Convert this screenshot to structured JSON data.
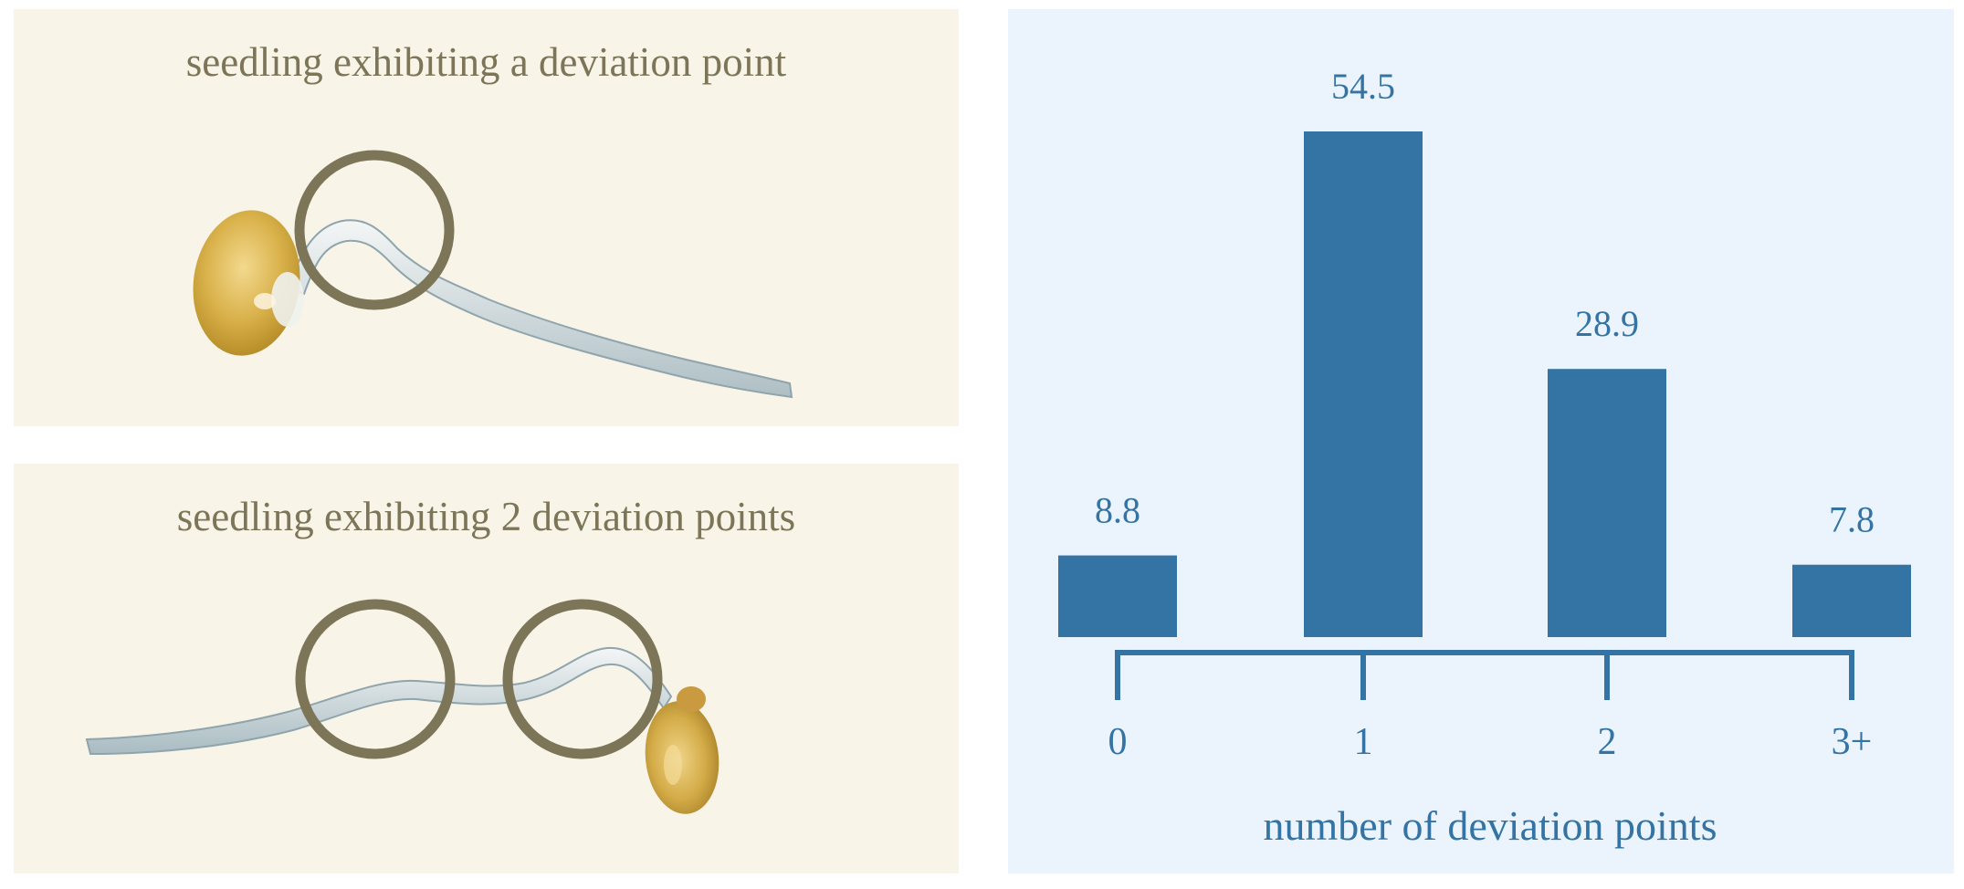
{
  "panels": {
    "top": {
      "caption": "seedling exhibiting a deviation point"
    },
    "bottom": {
      "caption": "seedling exhibiting 2 deviation points"
    }
  },
  "colors": {
    "panel_background": "#f8f4e8",
    "chart_background": "#ebf4fc",
    "bar": "#3474a4",
    "circle": "#7d7557"
  },
  "chart_data": {
    "type": "bar",
    "categories": [
      "0",
      "1",
      "2",
      "3+"
    ],
    "values": [
      8.8,
      54.5,
      28.9,
      7.8
    ],
    "data_labels": [
      "8.8",
      "54.5",
      "28.9",
      "7.8"
    ],
    "title": "",
    "xlabel": "number of deviation points",
    "ylabel": "",
    "ylim": [
      0,
      54.5
    ],
    "grid": false,
    "legend": "none"
  }
}
